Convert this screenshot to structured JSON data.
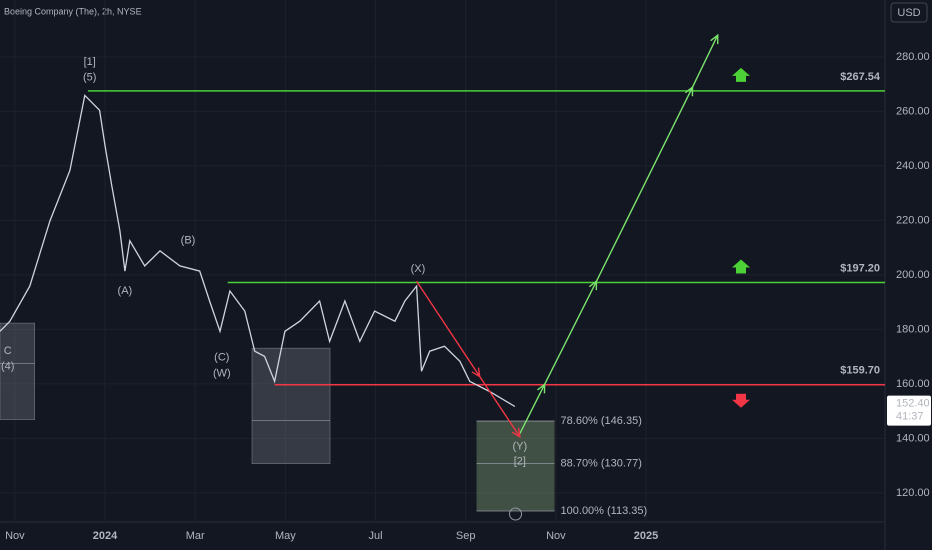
{
  "chart_data": {
    "type": "line",
    "title": "Boeing Company (The), 2h, NYSE",
    "currency": "USD",
    "xlim": [
      -0.33,
      19.3
    ],
    "ylim": [
      109.3,
      300.9
    ],
    "xticks": [
      {
        "value": 0,
        "label": "Nov"
      },
      {
        "value": 2,
        "label": "2024"
      },
      {
        "value": 4,
        "label": "Mar"
      },
      {
        "value": 6,
        "label": "May"
      },
      {
        "value": 8,
        "label": "Jul"
      },
      {
        "value": 10,
        "label": "Sep"
      },
      {
        "value": 12,
        "label": "Nov"
      },
      {
        "value": 14,
        "label": "2025"
      }
    ],
    "yticks": [
      {
        "value": 120,
        "label": "120.00"
      },
      {
        "value": 140,
        "label": "140.00"
      },
      {
        "value": 160,
        "label": "160.00"
      },
      {
        "value": 180,
        "label": "180.00"
      },
      {
        "value": 200,
        "label": "200.00"
      },
      {
        "value": 220,
        "label": "220.00"
      },
      {
        "value": 240,
        "label": "240.00"
      },
      {
        "value": 260,
        "label": "260.00"
      },
      {
        "value": 280,
        "label": "280.00"
      }
    ],
    "series": [
      {
        "color": "#d1d4dc",
        "x": [
          -0.33,
          -0.11,
          0.33,
          0.78,
          1.22,
          1.55,
          1.66,
          1.88,
          2.0,
          2.15,
          2.33,
          2.44,
          2.55,
          2.88,
          3.22,
          3.66,
          4.1,
          4.32,
          4.55,
          4.77,
          5.1,
          5.32,
          5.54,
          5.76,
          5.99,
          6.32,
          6.76,
          6.98,
          7.32,
          7.65,
          7.98,
          8.43,
          8.65,
          8.91,
          9.02,
          9.2,
          9.53,
          9.87,
          10.09,
          10.53,
          11.09
        ],
        "values": [
          179.3,
          183.0,
          195.9,
          219.9,
          238.3,
          265.9,
          264.1,
          260.4,
          247.5,
          232.7,
          216.2,
          201.4,
          212.5,
          203.3,
          208.8,
          203.3,
          201.4,
          190.4,
          179.3,
          194.1,
          186.7,
          172.0,
          170.1,
          160.9,
          179.3,
          183.0,
          190.4,
          175.6,
          190.4,
          175.6,
          186.7,
          183.0,
          190.4,
          195.9,
          164.6,
          172.0,
          173.8,
          168.3,
          160.9,
          157.2,
          151.7
        ]
      }
    ],
    "last_price": {
      "value": 152.4,
      "label": "152.40",
      "countdown": "41:37"
    },
    "levels": {
      "values": [
        267.54,
        197.2,
        159.7
      ],
      "value_labels": [
        "$267.54",
        "$197.20",
        "$159.70"
      ],
      "colors": [
        "#4cd137",
        "#4cd137",
        "#f23645"
      ],
      "x_start": [
        1.62,
        4.72,
        5.76
      ],
      "arrows": [
        "up",
        "up",
        "down"
      ]
    },
    "projections": [
      {
        "color": "#7be36b",
        "x": [
          11.2,
          11.75,
          12.9,
          15.03,
          15.59
        ],
        "values": [
          141.7,
          159.8,
          197.7,
          268.9,
          288.0
        ]
      },
      {
        "color": "#f23645",
        "x": [
          8.91,
          10.31,
          11.2
        ],
        "values": [
          197.7,
          162.7,
          140.6
        ]
      }
    ],
    "fib": {
      "prices": [
        146.35,
        130.77,
        113.35
      ],
      "labels": [
        "78.60% (146.35)",
        "88.70% (130.77)",
        "100.00% (113.35)"
      ],
      "x_start": 10.24,
      "x_end": 11.97
    },
    "zones": [
      {
        "x": [
          -0.33,
          0.44
        ],
        "y": [
          146.9,
          182.3
        ],
        "mid": 167.5
      },
      {
        "x": [
          5.26,
          6.99
        ],
        "y": [
          130.7,
          173.1
        ],
        "mid": 146.5
      }
    ],
    "annotations": [
      {
        "text": "[1]",
        "x": 1.66,
        "y": 278.1,
        "color": "#9fc9a8"
      },
      {
        "text": "(5)",
        "x": 1.66,
        "y": 272.5,
        "color": "#e91e63"
      },
      {
        "text": "(A)",
        "x": 2.44,
        "y": 194.1,
        "color": "#e91e63"
      },
      {
        "text": "(B)",
        "x": 3.84,
        "y": 212.5,
        "color": "#e91e63"
      },
      {
        "text": "(C)",
        "x": 4.59,
        "y": 169.7,
        "color": "#e91e63"
      },
      {
        "text": "(W)",
        "x": 4.59,
        "y": 163.8,
        "color": "#e91e63"
      },
      {
        "text": "(X)",
        "x": 8.94,
        "y": 202.2,
        "color": "#e91e63"
      },
      {
        "text": "(Y)",
        "x": 11.2,
        "y": 137.0,
        "color": "#e91e63"
      },
      {
        "text": "[2]",
        "x": 11.2,
        "y": 131.4,
        "color": "#9fc9a8"
      },
      {
        "text": "C",
        "x": -0.16,
        "y": 172.0,
        "color": "#26a69a"
      },
      {
        "text": "(4)",
        "x": -0.16,
        "y": 166.4,
        "color": "#e91e63"
      }
    ]
  }
}
